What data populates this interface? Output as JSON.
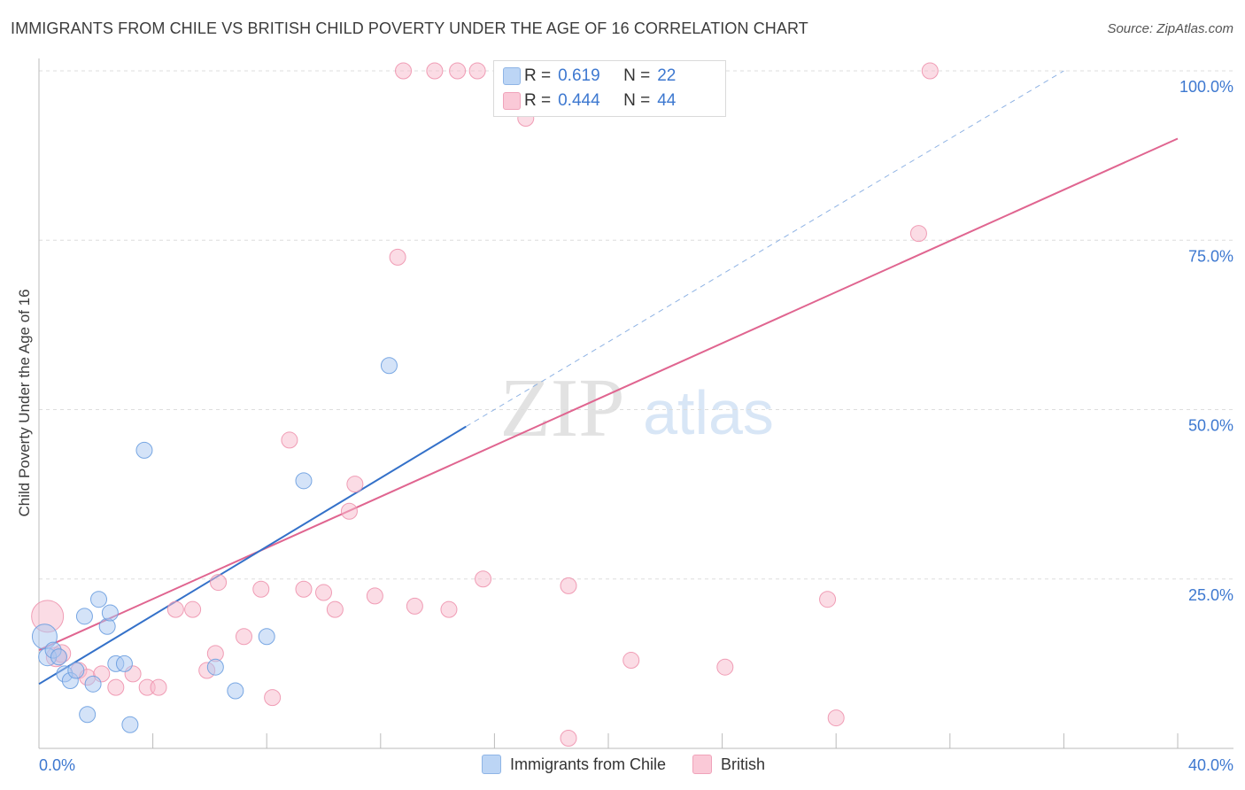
{
  "title": "IMMIGRANTS FROM CHILE VS BRITISH CHILD POVERTY UNDER THE AGE OF 16 CORRELATION CHART",
  "source": "Source: ZipAtlas.com",
  "watermark": {
    "zip": "ZIP",
    "atlas": "atlas"
  },
  "legend": {
    "r_label": "R =",
    "n_label": "N =",
    "rows": [
      {
        "r": "0.619",
        "n": "22"
      },
      {
        "r": "0.444",
        "n": "44"
      }
    ]
  },
  "colors": {
    "chile_fill": "#a9c8f2",
    "chile_stroke": "#6b9ee0",
    "chile_line": "#3471c9",
    "british_fill": "#f8b9cb",
    "british_stroke": "#ee93ae",
    "british_line": "#e06590",
    "axis_text": "#3d78d0",
    "grid": "#dddddd"
  },
  "chart_data": {
    "type": "scatter",
    "title": "IMMIGRANTS FROM CHILE VS BRITISH CHILD POVERTY UNDER THE AGE OF 16 CORRELATION CHART",
    "xlabel": "",
    "ylabel": "Child Poverty Under the Age of 16",
    "xlim": [
      0,
      40
    ],
    "ylim": [
      0,
      100
    ],
    "x_tick_labels": [
      "0.0%",
      "40.0%"
    ],
    "y_ticks": [
      25,
      50,
      75,
      100
    ],
    "y_tick_labels": [
      "25.0%",
      "50.0%",
      "75.0%",
      "100.0%"
    ],
    "grid": true,
    "legend_position": "bottom-center",
    "series": [
      {
        "name": "Immigrants from Chile",
        "r": 0.619,
        "n": 22,
        "points": [
          [
            0.2,
            16.5,
            14
          ],
          [
            0.3,
            13.5,
            10
          ],
          [
            0.5,
            14.5,
            9
          ],
          [
            0.7,
            13.5,
            9
          ],
          [
            0.9,
            11,
            9
          ],
          [
            1.1,
            10,
            9
          ],
          [
            1.3,
            11.5,
            9
          ],
          [
            1.6,
            19.5,
            9
          ],
          [
            1.7,
            5,
            9
          ],
          [
            1.9,
            9.5,
            9
          ],
          [
            2.1,
            22,
            9
          ],
          [
            2.4,
            18,
            9
          ],
          [
            2.5,
            20,
            9
          ],
          [
            2.7,
            12.5,
            9
          ],
          [
            3.0,
            12.5,
            9
          ],
          [
            3.2,
            3.5,
            9
          ],
          [
            3.7,
            44,
            9
          ],
          [
            6.2,
            12,
            9
          ],
          [
            6.9,
            8.5,
            9
          ],
          [
            8.0,
            16.5,
            9
          ],
          [
            9.3,
            39.5,
            9
          ],
          [
            12.3,
            56.5,
            9
          ]
        ],
        "trend": {
          "x": [
            0,
            15
          ],
          "y": [
            9.5,
            47.5
          ]
        },
        "trend_extension": {
          "x": [
            15,
            36
          ],
          "y": [
            47.5,
            100
          ]
        }
      },
      {
        "name": "British",
        "r": 0.444,
        "n": 44,
        "points": [
          [
            0.3,
            19.5,
            18
          ],
          [
            0.6,
            13.5,
            11
          ],
          [
            0.8,
            14,
            10
          ],
          [
            1.4,
            11.5,
            9
          ],
          [
            1.7,
            10.5,
            9
          ],
          [
            2.2,
            11,
            9
          ],
          [
            2.7,
            9,
            9
          ],
          [
            3.3,
            11,
            9
          ],
          [
            3.8,
            9,
            9
          ],
          [
            4.2,
            9,
            9
          ],
          [
            4.8,
            20.5,
            9
          ],
          [
            5.4,
            20.5,
            9
          ],
          [
            5.9,
            11.5,
            9
          ],
          [
            6.2,
            14,
            9
          ],
          [
            6.3,
            24.5,
            9
          ],
          [
            7.2,
            16.5,
            9
          ],
          [
            7.8,
            23.5,
            9
          ],
          [
            8.2,
            7.5,
            9
          ],
          [
            8.8,
            45.5,
            9
          ],
          [
            9.3,
            23.5,
            9
          ],
          [
            10.0,
            23,
            9
          ],
          [
            10.4,
            20.5,
            9
          ],
          [
            10.9,
            35,
            9
          ],
          [
            11.1,
            39,
            9
          ],
          [
            11.8,
            22.5,
            9
          ],
          [
            12.6,
            72.5,
            9
          ],
          [
            12.8,
            100,
            9
          ],
          [
            13.2,
            21,
            9
          ],
          [
            13.9,
            100,
            9
          ],
          [
            14.4,
            20.5,
            9
          ],
          [
            14.7,
            100,
            9
          ],
          [
            15.4,
            100,
            9
          ],
          [
            15.6,
            25,
            9
          ],
          [
            16.3,
            100,
            9
          ],
          [
            16.9,
            100,
            9
          ],
          [
            17.1,
            93,
            9
          ],
          [
            18.6,
            1.5,
            9
          ],
          [
            18.6,
            24,
            9
          ],
          [
            20.8,
            13,
            9
          ],
          [
            24.1,
            12,
            9
          ],
          [
            27.7,
            22,
            9
          ],
          [
            28.0,
            4.5,
            9
          ],
          [
            30.9,
            76,
            9
          ],
          [
            31.3,
            100,
            9
          ]
        ],
        "trend": {
          "x": [
            0,
            40
          ],
          "y": [
            14.5,
            90
          ]
        }
      }
    ]
  }
}
